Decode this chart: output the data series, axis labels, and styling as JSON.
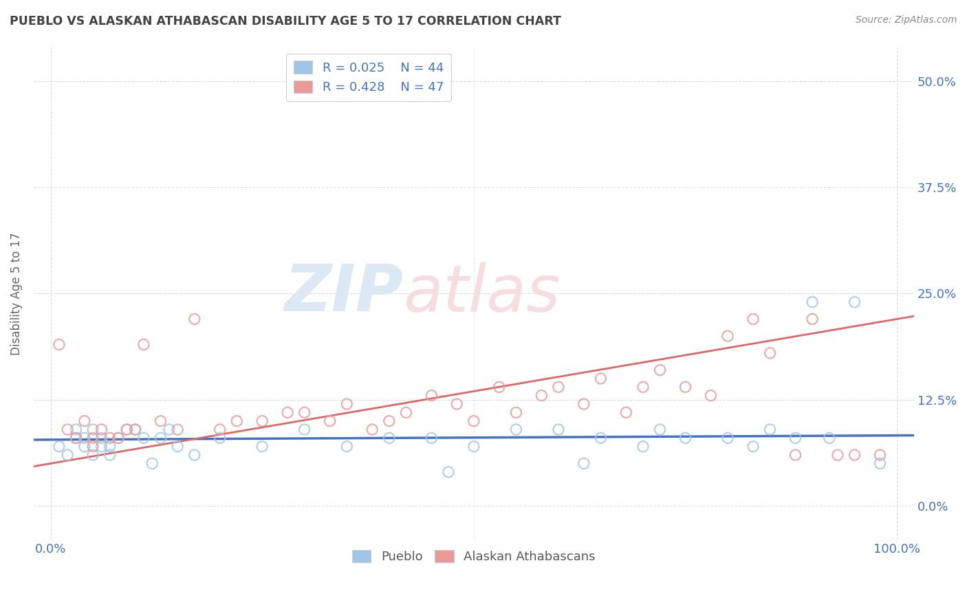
{
  "title": "PUEBLO VS ALASKAN ATHABASCAN DISABILITY AGE 5 TO 17 CORRELATION CHART",
  "source": "Source: ZipAtlas.com",
  "ylabel": "Disability Age 5 to 17",
  "legend_bottom": [
    "Pueblo",
    "Alaskan Athabascans"
  ],
  "xlim": [
    -2,
    102
  ],
  "ylim": [
    -4,
    54
  ],
  "yticks": [
    0,
    12.5,
    25,
    37.5,
    50
  ],
  "xtick_labels": [
    "0.0%",
    "100.0%"
  ],
  "ytick_labels": [
    "0.0%",
    "12.5%",
    "25.0%",
    "37.5%",
    "50.0%"
  ],
  "pueblo_color": "#9fc5e8",
  "athabascan_color": "#ea9999",
  "pueblo_R": "0.025",
  "pueblo_N": "44",
  "athabascan_R": "0.428",
  "athabascan_N": "47",
  "pueblo_scatter_x": [
    1,
    2,
    3,
    3,
    4,
    4,
    5,
    5,
    6,
    6,
    7,
    7,
    8,
    9,
    10,
    11,
    12,
    13,
    14,
    15,
    17,
    20,
    25,
    30,
    35,
    40,
    45,
    47,
    50,
    55,
    60,
    63,
    65,
    70,
    72,
    75,
    80,
    83,
    85,
    88,
    90,
    92,
    95,
    98
  ],
  "pueblo_scatter_y": [
    7,
    6,
    9,
    8,
    8,
    7,
    9,
    6,
    8,
    7,
    7,
    6,
    8,
    9,
    9,
    8,
    5,
    8,
    9,
    7,
    6,
    8,
    7,
    9,
    7,
    8,
    8,
    4,
    7,
    9,
    9,
    5,
    8,
    7,
    9,
    8,
    8,
    7,
    9,
    8,
    24,
    8,
    24,
    5
  ],
  "athabascan_scatter_x": [
    1,
    2,
    3,
    4,
    5,
    5,
    6,
    7,
    8,
    9,
    10,
    11,
    13,
    15,
    17,
    20,
    22,
    25,
    28,
    30,
    33,
    35,
    38,
    40,
    42,
    45,
    48,
    50,
    53,
    55,
    58,
    60,
    63,
    65,
    68,
    70,
    72,
    75,
    78,
    80,
    83,
    85,
    88,
    90,
    93,
    95,
    98
  ],
  "athabascan_scatter_y": [
    19,
    9,
    8,
    10,
    8,
    7,
    9,
    8,
    8,
    9,
    9,
    19,
    10,
    9,
    22,
    9,
    10,
    10,
    11,
    11,
    10,
    12,
    9,
    10,
    11,
    13,
    12,
    10,
    14,
    11,
    13,
    14,
    12,
    15,
    11,
    14,
    16,
    14,
    13,
    20,
    22,
    18,
    6,
    22,
    6,
    6,
    6
  ],
  "watermark_zip": "ZIP",
  "watermark_atlas": "atlas",
  "background_color": "#ffffff",
  "grid_color": "#cccccc",
  "title_color": "#434343",
  "axis_tick_color": "#4472c4",
  "pueblo_line_color": "#4472c4",
  "athabascan_line_color": "#e06666",
  "ylabel_color": "#666666"
}
